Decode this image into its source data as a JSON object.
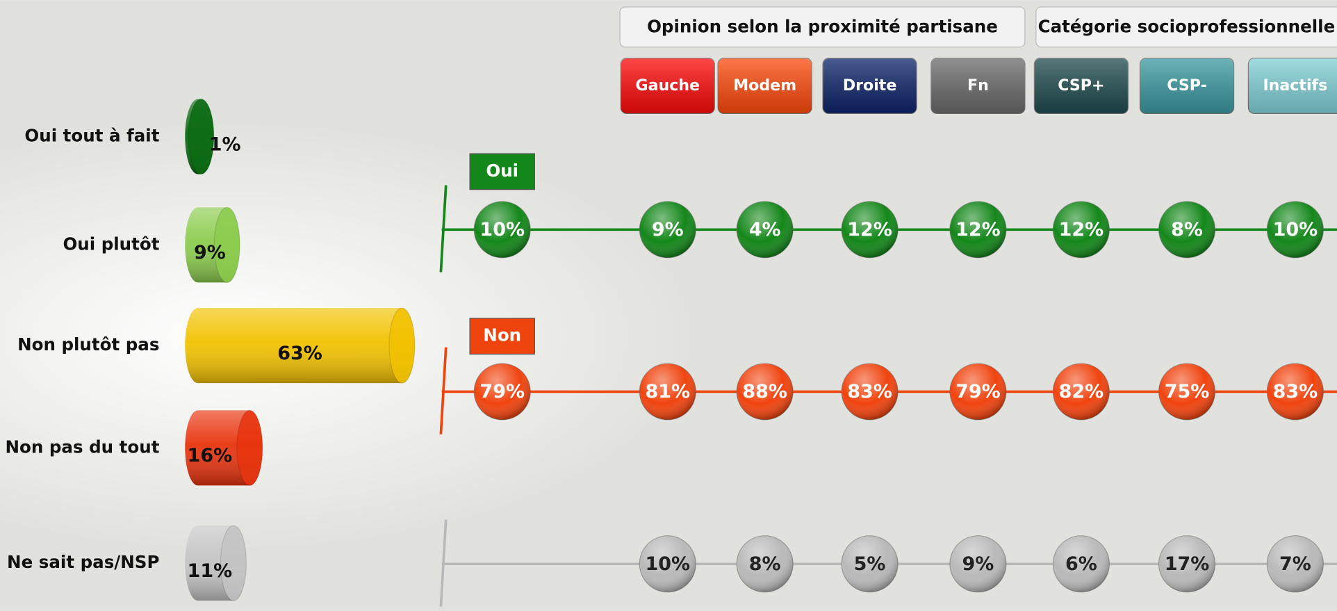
{
  "chart_data": [
    {
      "type": "cylinder-bar",
      "categories": [
        "Oui tout à fait",
        "Oui plutôt",
        "Non plutôt pas",
        "Non pas du tout",
        "Ne sait pas/NSP"
      ],
      "values": [
        1,
        9,
        63,
        16,
        11
      ],
      "value_labels": [
        "1%",
        "9%",
        "63%",
        "16%",
        "11%"
      ],
      "colors": [
        "#0b6b12",
        "#8ccc4e",
        "#f2c200",
        "#e8340e",
        "#c4c4c4"
      ]
    },
    {
      "type": "dot-table",
      "groups": [
        "Opinion selon la proximité partisane",
        "Catégorie socioprofessionnelle"
      ],
      "categories": [
        null,
        "Gauche",
        "Modem",
        "Droite",
        "Fn",
        "CSP+",
        "CSP-",
        "Inactifs"
      ],
      "category_colors": [
        null,
        "#ff0a0a",
        "#ff4a0c",
        "#0c246a",
        "#6b6b6b",
        "#1f4c50",
        "#3b9aa2",
        "#82d2d8"
      ],
      "series": [
        {
          "name": "Oui",
          "color": "#14871a",
          "values": [
            10,
            9,
            4,
            12,
            12,
            12,
            8,
            10
          ],
          "value_labels": [
            "10%",
            "9%",
            "4%",
            "12%",
            "12%",
            "12%",
            "8%",
            "10%"
          ]
        },
        {
          "name": "Non",
          "color": "#f0440f",
          "values": [
            79,
            81,
            88,
            83,
            79,
            82,
            75,
            83
          ],
          "value_labels": [
            "79%",
            "81%",
            "88%",
            "83%",
            "79%",
            "82%",
            "75%",
            "83%"
          ]
        },
        {
          "color": "#b9b9b9",
          "values": [
            null,
            10,
            8,
            5,
            9,
            6,
            17,
            7
          ],
          "value_labels": [
            null,
            "10%",
            "8%",
            "5%",
            "9%",
            "6%",
            "17%",
            "7%"
          ]
        }
      ]
    }
  ]
}
